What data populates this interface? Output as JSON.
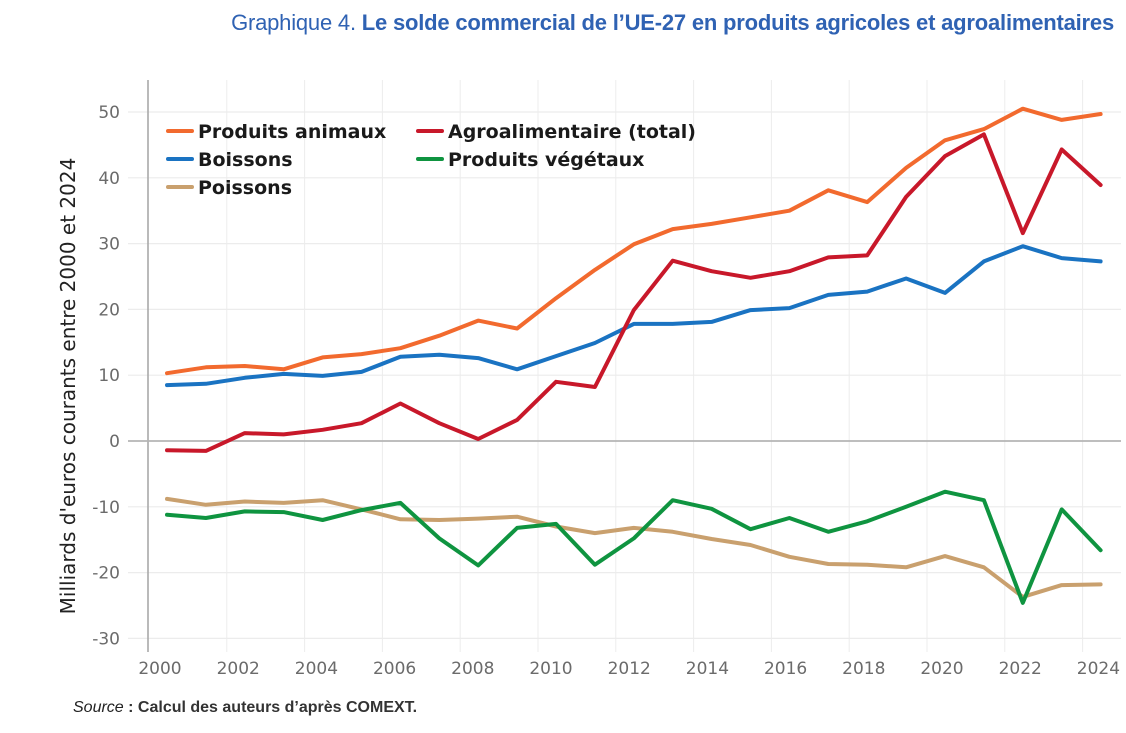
{
  "title": {
    "prefix": "Graphique 4.",
    "main": "Le solde commercial de l’UE-27 en produits agricoles et agroalimentaires"
  },
  "source": {
    "label": "Source",
    "separator": " : ",
    "text": "Calcul des auteurs d’après COMEXT."
  },
  "chart_data": {
    "type": "line",
    "title": "Le solde commercial de l’UE-27 en produits agricoles et agroalimentaires",
    "xlabel": "",
    "ylabel": "Milliards d'euros courants entre 2000 et 2024",
    "xlim": [
      2000,
      2024
    ],
    "ylim": [
      -30,
      50
    ],
    "grid": true,
    "legend_position": "top-left",
    "x": [
      2000,
      2001,
      2002,
      2003,
      2004,
      2005,
      2006,
      2007,
      2008,
      2009,
      2010,
      2011,
      2012,
      2013,
      2014,
      2015,
      2016,
      2017,
      2018,
      2019,
      2020,
      2021,
      2022,
      2023,
      2024
    ],
    "x_ticks": [
      "2000",
      "2002",
      "2004",
      "2006",
      "2008",
      "2010",
      "2012",
      "2014",
      "2016",
      "2018",
      "2020",
      "2022",
      "2024"
    ],
    "y_ticks": [
      "50",
      "40",
      "30",
      "20",
      "10",
      "0",
      "-10",
      "-20",
      "-30"
    ],
    "y_tick_values": [
      50,
      40,
      30,
      20,
      10,
      0,
      -10,
      -20,
      -30
    ],
    "series": [
      {
        "name": "Produits animaux",
        "color": "#f26a2e",
        "values": [
          10.3,
          11.2,
          11.4,
          10.9,
          12.7,
          13.2,
          14.1,
          16.0,
          18.3,
          17.1,
          21.7,
          26.0,
          29.9,
          32.2,
          33.0,
          34.0,
          35.0,
          38.1,
          36.3,
          41.5,
          45.7,
          47.4,
          50.5,
          48.8,
          49.7
        ]
      },
      {
        "name": "Agroalimentaire (total)",
        "color": "#c8182a",
        "values": [
          -1.4,
          -1.5,
          1.2,
          1.0,
          1.7,
          2.7,
          5.7,
          2.7,
          0.3,
          3.2,
          9.0,
          8.2,
          19.9,
          27.4,
          25.8,
          24.8,
          25.8,
          27.9,
          28.2,
          37.1,
          43.3,
          46.6,
          31.6,
          44.3,
          38.9
        ]
      },
      {
        "name": "Boissons",
        "color": "#1a73c2",
        "values": [
          8.5,
          8.7,
          9.6,
          10.2,
          9.9,
          10.5,
          12.8,
          13.1,
          12.6,
          10.9,
          12.9,
          14.9,
          17.8,
          17.8,
          18.1,
          19.9,
          20.2,
          22.2,
          22.7,
          24.7,
          22.5,
          27.3,
          29.6,
          27.8,
          27.3
        ]
      },
      {
        "name": "Produits végétaux",
        "color": "#0f9440",
        "values": [
          -11.2,
          -11.7,
          -10.7,
          -10.8,
          -12.0,
          -10.5,
          -9.4,
          -14.8,
          -18.9,
          -13.2,
          -12.6,
          -18.8,
          -14.8,
          -9.0,
          -10.3,
          -13.4,
          -11.7,
          -13.8,
          -12.2,
          -10.0,
          -7.7,
          -9.0,
          -24.6,
          -10.4,
          -16.6
        ]
      },
      {
        "name": "Poissons",
        "color": "#c9a06e",
        "values": [
          -8.8,
          -9.7,
          -9.2,
          -9.4,
          -9.0,
          -10.4,
          -11.9,
          -12.0,
          -11.8,
          -11.5,
          -13.0,
          -14.0,
          -13.2,
          -13.8,
          -14.9,
          -15.8,
          -17.6,
          -18.7,
          -18.8,
          -19.2,
          -17.5,
          -19.2,
          -23.7,
          -21.9,
          -21.8
        ]
      }
    ],
    "legend": [
      {
        "label": "Produits animaux",
        "color": "#f26a2e"
      },
      {
        "label": "Agroalimentaire (total)",
        "color": "#c8182a"
      },
      {
        "label": "Boissons",
        "color": "#1a73c2"
      },
      {
        "label": "Produits végétaux",
        "color": "#0f9440"
      },
      {
        "label": "Poissons",
        "color": "#c9a06e"
      }
    ]
  }
}
